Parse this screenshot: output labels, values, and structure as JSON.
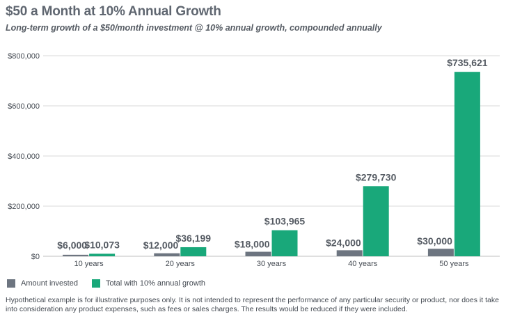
{
  "title": "$50 a Month at 10% Annual Growth",
  "subtitle": "Long-term growth of a $50/month investment @ 10% annual growth, compounded annually",
  "footnote": "Hypothetical example is for illustrative purposes only. It is not intended to represent the performance of any particular security or product, nor does it take into consideration any product expenses, such as fees or sales charges. The results would be reduced if they were included.",
  "colors": {
    "invested": "#6d7580",
    "growth": "#19a87a",
    "grid": "#d9d9d9"
  },
  "chart_data": {
    "type": "bar",
    "title": "$50 a Month at 10% Annual Growth",
    "subtitle": "Long-term growth of a $50/month investment @ 10% annual growth, compounded annually",
    "categories": [
      "10 years",
      "20 years",
      "30 years",
      "40 years",
      "50 years"
    ],
    "series": [
      {
        "name": "Amount invested",
        "values": [
          6000,
          12000,
          18000,
          24000,
          30000
        ],
        "labels": [
          "$6,000",
          "$12,000",
          "$18,000",
          "$24,000",
          "$30,000"
        ],
        "color": "#6d7580"
      },
      {
        "name": "Total with 10% annual growth",
        "values": [
          10073,
          36199,
          103965,
          279730,
          735621
        ],
        "labels": [
          "$10,073",
          "$36,199",
          "$103,965",
          "$279,730",
          "$735,621"
        ],
        "color": "#19a87a"
      }
    ],
    "ylim": [
      0,
      800000
    ],
    "yticks": [
      0,
      200000,
      400000,
      600000,
      800000
    ],
    "ytick_labels": [
      "$0",
      "$200,000",
      "$400,000",
      "$600,000",
      "$800,000"
    ],
    "xlabel": "",
    "ylabel": "",
    "grid": true,
    "legend_position": "bottom-left"
  }
}
